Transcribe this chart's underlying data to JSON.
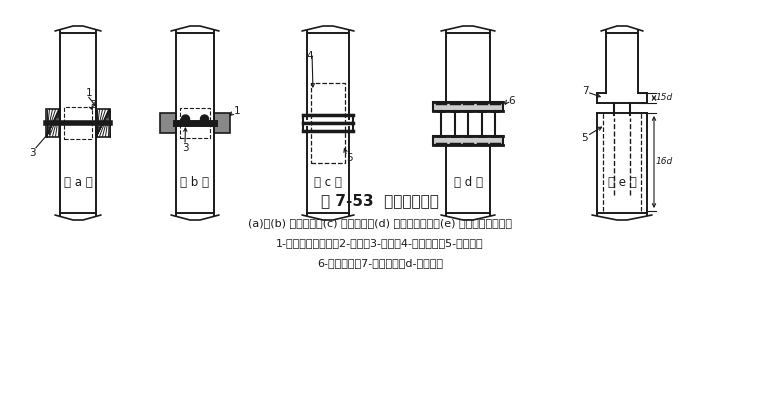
{
  "title": "图 7-53  桩的接头型式",
  "caption_line1": "(a)、(b) 焊接接合；(c) 管式接合；(d) 管桩螺栓接合；(e) 硫磺砂浆锚筋接合",
  "caption_line2": "1-角钢与主筋焊接；2-钢板；3-焊缝；4-预埋钢管；5-浆锚孔；",
  "caption_line3": "6-预埋法兰；7-预埋锚筋；d-锚栓直径",
  "labels": [
    "(a)",
    "(b)",
    "(c)",
    "(d)",
    "(e)"
  ],
  "bg_color": "#ffffff",
  "line_color": "#1a1a1a",
  "fig_width": 7.6,
  "fig_height": 3.98,
  "dpi": 100
}
